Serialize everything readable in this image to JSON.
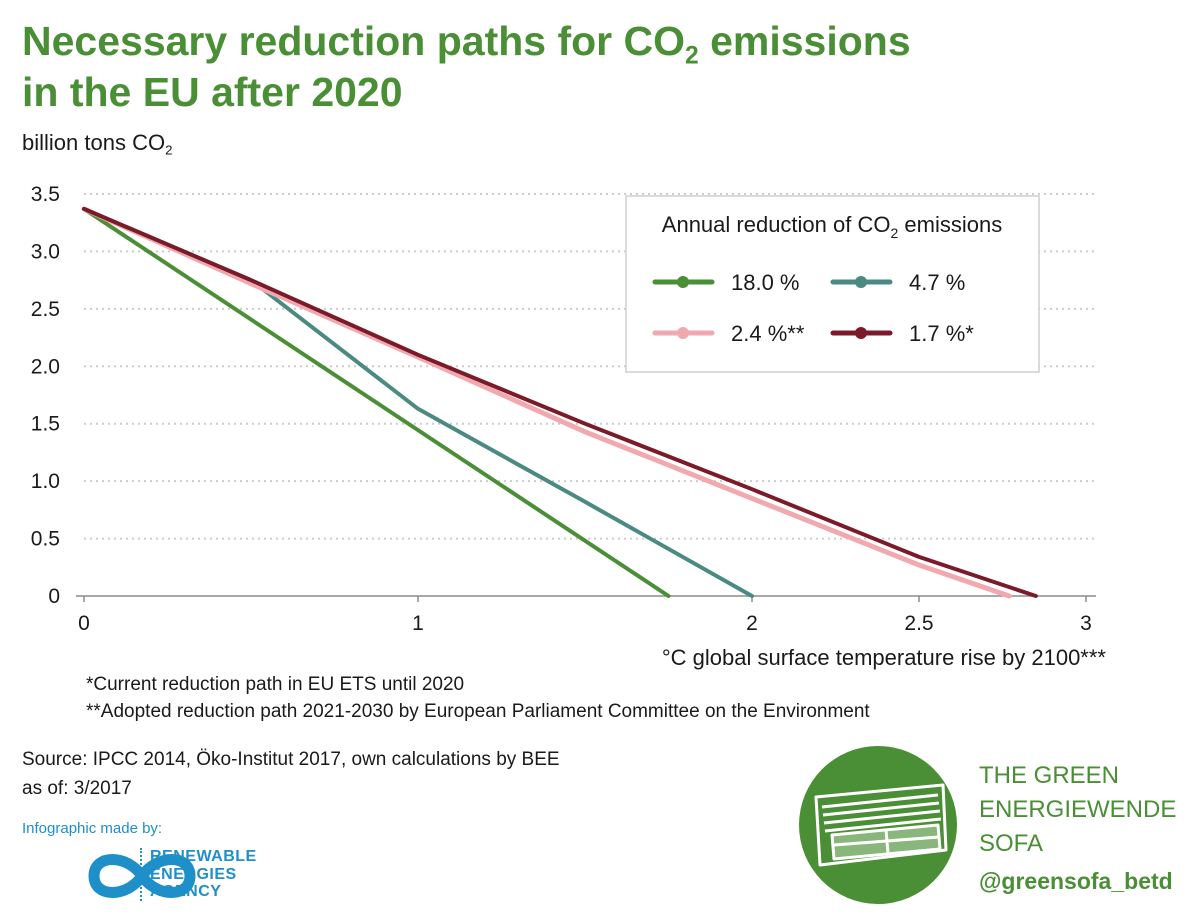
{
  "title": {
    "line1_pre": "Necessary reduction paths for CO",
    "line1_sub": "2",
    "line1_post": " emissions",
    "line2": "in the EU after 2020"
  },
  "unit_label": {
    "pre": "billion tons CO",
    "sub": "2"
  },
  "legend_title": {
    "pre": "Annual reduction of CO",
    "sub": "2",
    "post": " emissions"
  },
  "notes": [
    "*Current reduction path in EU ETS until 2020",
    "**Adopted reduction path 2021-2030 by European Parliament Committee on the Environment"
  ],
  "source": "Source: IPCC 2014, Öko-Institut 2017, own calculations by BEE",
  "as_of": "as of: 3/2017",
  "made_by": "Infographic made by:",
  "rea_lines": [
    "RENEWABLE",
    "ENERGIES",
    "AGENCY"
  ],
  "sofa_lines": [
    "THE GREEN",
    "ENERGIEWENDE",
    "SOFA"
  ],
  "handle": "@greensofa_betd",
  "colors": {
    "title_green": "#4a8f35",
    "accent_blue": "#1f8fc9",
    "series_18": "#4a8f35",
    "series_4_7": "#4a8a82",
    "series_2_4": "#f1a9b0",
    "series_1_7": "#7b1a28",
    "grid": "#cccccc"
  },
  "chart_data": {
    "type": "line",
    "xlabel": "°C global surface temperature rise by 2100***",
    "ylabel": "billion tons CO2",
    "xlim": [
      0,
      3
    ],
    "ylim": [
      0,
      3.5
    ],
    "x_ticks": [
      "0",
      "1",
      "2",
      "2.5",
      "3"
    ],
    "x_tick_values": [
      0,
      1,
      2,
      2.5,
      3
    ],
    "y_ticks": [
      "3.5",
      "3.0",
      "2.5",
      "2.0",
      "1.5",
      "1.0",
      "0.5",
      "0"
    ],
    "y_tick_values": [
      3.5,
      3.0,
      2.5,
      2.0,
      1.5,
      1.0,
      0.5,
      0
    ],
    "grid": "horizontal dotted",
    "legend_position": "top-right",
    "series": [
      {
        "name": "18.0 %",
        "color": "#4a8f35",
        "points": [
          [
            0,
            3.37
          ],
          [
            1.75,
            0
          ]
        ]
      },
      {
        "name": "4.7 %",
        "color": "#4a8a82",
        "points": [
          [
            0,
            3.37
          ],
          [
            0.5,
            2.75
          ],
          [
            1.0,
            1.63
          ],
          [
            1.5,
            0.82
          ],
          [
            2.0,
            0
          ]
        ]
      },
      {
        "name": "2.4 %**",
        "color": "#f1a9b0",
        "points": [
          [
            0,
            3.37
          ],
          [
            0.5,
            2.72
          ],
          [
            1.0,
            2.08
          ],
          [
            1.5,
            1.43
          ],
          [
            2.0,
            0.85
          ],
          [
            2.5,
            0.27
          ],
          [
            2.77,
            0
          ]
        ]
      },
      {
        "name": "1.7 %*",
        "color": "#7b1a28",
        "points": [
          [
            0,
            3.37
          ],
          [
            0.5,
            2.75
          ],
          [
            1.0,
            2.1
          ],
          [
            1.5,
            1.5
          ],
          [
            2.0,
            0.93
          ],
          [
            2.5,
            0.34
          ],
          [
            2.85,
            0
          ]
        ]
      }
    ]
  }
}
